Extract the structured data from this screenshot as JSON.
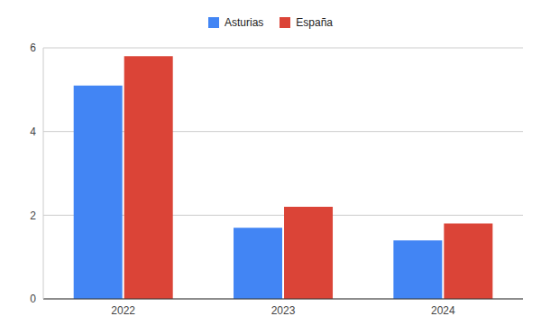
{
  "chart_data": {
    "type": "bar",
    "categories": [
      "2022",
      "2023",
      "2024"
    ],
    "series": [
      {
        "name": "Asturias",
        "color": "#4285f4",
        "values": [
          5.1,
          1.7,
          1.4
        ]
      },
      {
        "name": "España",
        "color": "#db4437",
        "values": [
          5.8,
          2.2,
          1.8
        ]
      }
    ],
    "ylim": [
      0,
      6
    ],
    "yticks": [
      0,
      2,
      4,
      6
    ],
    "grid": true,
    "legend": "top"
  }
}
